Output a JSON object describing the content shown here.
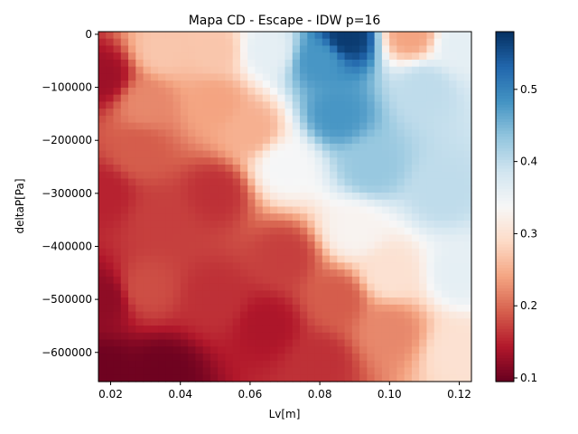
{
  "chart_data": {
    "type": "heatmap",
    "title": "Mapa CD - Escape - IDW p=16",
    "xlabel": "Lv[m]",
    "ylabel": "deltaP[Pa]",
    "xlim": [
      0.0165,
      0.1235
    ],
    "ylim": [
      -655000,
      5000
    ],
    "x_ticks": [
      0.02,
      0.04,
      0.06,
      0.08,
      0.1,
      0.12
    ],
    "x_tick_labels": [
      "0.02",
      "0.04",
      "0.06",
      "0.08",
      "0.10",
      "0.12"
    ],
    "y_ticks": [
      0,
      -100000,
      -200000,
      -300000,
      -400000,
      -500000,
      -600000
    ],
    "y_tick_labels": [
      "0",
      "−100000",
      "−200000",
      "−300000",
      "−400000",
      "−500000",
      "−600000"
    ],
    "colorbar": {
      "colormap": "RdBu",
      "vmin": 0.095,
      "vmax": 0.58,
      "ticks": [
        0.1,
        0.2,
        0.3,
        0.4,
        0.5
      ],
      "tick_labels": [
        "0.1",
        "0.2",
        "0.3",
        "0.4",
        "0.5"
      ]
    },
    "grid": false,
    "grid_resolution": [
      50,
      50
    ],
    "anchor_points": [
      {
        "x": 0.018,
        "y": -640000,
        "cd": 0.1
      },
      {
        "x": 0.035,
        "y": -640000,
        "cd": 0.1
      },
      {
        "x": 0.018,
        "y": -500000,
        "cd": 0.12
      },
      {
        "x": 0.018,
        "y": -80000,
        "cd": 0.13
      },
      {
        "x": 0.018,
        "y": -300000,
        "cd": 0.15
      },
      {
        "x": 0.03,
        "y": -480000,
        "cd": 0.18
      },
      {
        "x": 0.03,
        "y": -130000,
        "cd": 0.22
      },
      {
        "x": 0.028,
        "y": -220000,
        "cd": 0.19
      },
      {
        "x": 0.035,
        "y": -350000,
        "cd": 0.17
      },
      {
        "x": 0.05,
        "y": -300000,
        "cd": 0.16
      },
      {
        "x": 0.05,
        "y": -500000,
        "cd": 0.16
      },
      {
        "x": 0.065,
        "y": -550000,
        "cd": 0.14
      },
      {
        "x": 0.07,
        "y": -420000,
        "cd": 0.17
      },
      {
        "x": 0.035,
        "y": -30000,
        "cd": 0.27
      },
      {
        "x": 0.05,
        "y": -30000,
        "cd": 0.27
      },
      {
        "x": 0.05,
        "y": -130000,
        "cd": 0.24
      },
      {
        "x": 0.06,
        "y": -180000,
        "cd": 0.25
      },
      {
        "x": 0.065,
        "y": -30000,
        "cd": 0.36
      },
      {
        "x": 0.07,
        "y": -250000,
        "cd": 0.34
      },
      {
        "x": 0.08,
        "y": -50000,
        "cd": 0.48
      },
      {
        "x": 0.088,
        "y": -5000,
        "cd": 0.57
      },
      {
        "x": 0.085,
        "y": -150000,
        "cd": 0.48
      },
      {
        "x": 0.095,
        "y": -250000,
        "cd": 0.43
      },
      {
        "x": 0.11,
        "y": -100000,
        "cd": 0.4
      },
      {
        "x": 0.12,
        "y": -20000,
        "cd": 0.36
      },
      {
        "x": 0.106,
        "y": 0,
        "cd": 0.24
      },
      {
        "x": 0.115,
        "y": -300000,
        "cd": 0.4
      },
      {
        "x": 0.09,
        "y": -370000,
        "cd": 0.33
      },
      {
        "x": 0.1,
        "y": -450000,
        "cd": 0.3
      },
      {
        "x": 0.12,
        "y": -450000,
        "cd": 0.36
      },
      {
        "x": 0.085,
        "y": -500000,
        "cd": 0.19
      },
      {
        "x": 0.1,
        "y": -560000,
        "cd": 0.22
      },
      {
        "x": 0.12,
        "y": -600000,
        "cd": 0.3
      },
      {
        "x": 0.08,
        "y": -620000,
        "cd": 0.16
      }
    ]
  }
}
